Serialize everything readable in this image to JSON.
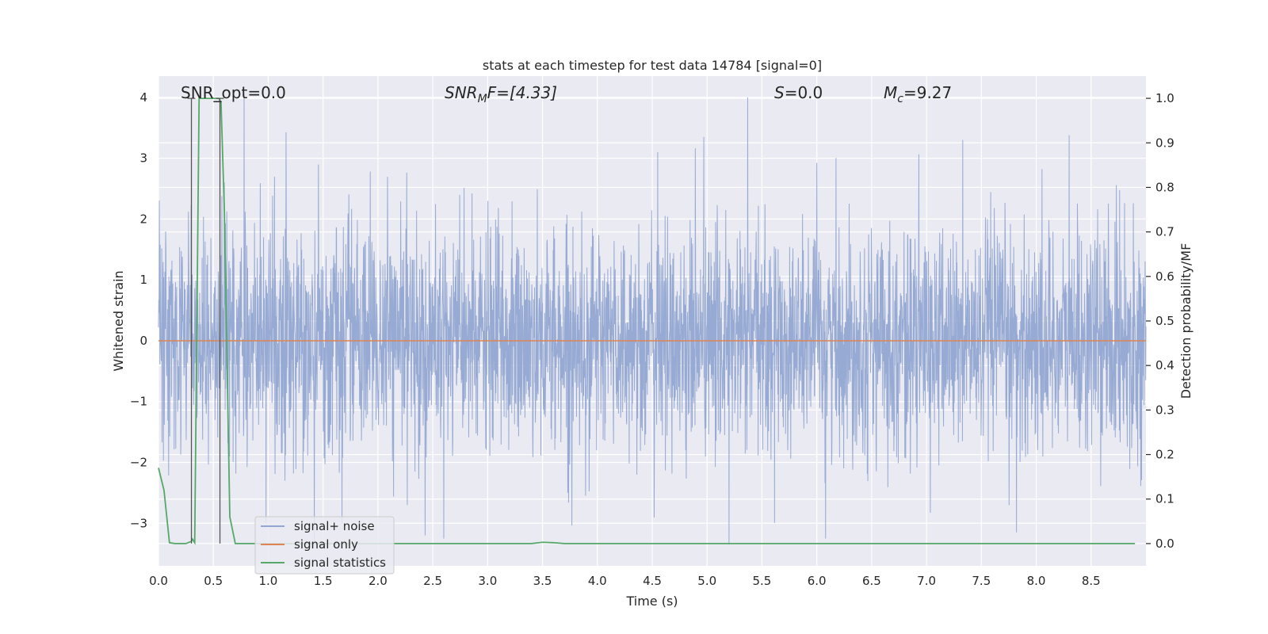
{
  "chart_data": {
    "type": "line",
    "title": "stats at each timestep for test data 14784 [signal=0]",
    "xlabel": "Time (s)",
    "ylabel": "Whitened strain",
    "y2label": "Detection probability/MF",
    "xlim": [
      0.0,
      9.0
    ],
    "ylim": [
      -3.7,
      4.35
    ],
    "y2lim": [
      -0.05,
      1.05
    ],
    "grid": true,
    "x_ticks": [
      0.0,
      0.5,
      1.0,
      1.5,
      2.0,
      2.5,
      3.0,
      3.5,
      4.0,
      4.5,
      5.0,
      5.5,
      6.0,
      6.5,
      7.0,
      7.5,
      8.0,
      8.5
    ],
    "x_tick_labels": [
      "0.0",
      "0.5",
      "1.0",
      "1.5",
      "2.0",
      "2.5",
      "3.0",
      "3.5",
      "4.0",
      "4.5",
      "5.0",
      "5.5",
      "6.0",
      "6.5",
      "7.0",
      "7.5",
      "8.0",
      "8.5"
    ],
    "y_ticks": [
      -3,
      -2,
      -1,
      0,
      1,
      2,
      3,
      4
    ],
    "y_tick_labels": [
      "−3",
      "−2",
      "−1",
      "0",
      "1",
      "2",
      "3",
      "4"
    ],
    "y2_ticks": [
      0.0,
      0.1,
      0.2,
      0.3,
      0.4,
      0.5,
      0.6,
      0.7,
      0.8,
      0.9,
      1.0
    ],
    "y2_tick_labels": [
      "0.0",
      "0.1",
      "0.2",
      "0.3",
      "0.4",
      "0.5",
      "0.6",
      "0.7",
      "0.8",
      "0.9",
      "1.0"
    ],
    "annotations": {
      "snr_opt": "SNR_opt=0.0",
      "snr_mf_main": "SNR",
      "snr_mf_sub": "M",
      "snr_mf_rest": "F=[4.33]",
      "s_main": "S",
      "s_rest": "=0.0",
      "mc_main": "M",
      "mc_sub": "c",
      "mc_rest": "=9.27"
    },
    "legend_position": "lower-left",
    "series": [
      {
        "name": "signal+ noise",
        "color": "#92a6d1",
        "noise_std": 0.9,
        "spikes": [
          {
            "x": 0.78,
            "y": 4.05
          },
          {
            "x": 5.37,
            "y": 4.0
          },
          {
            "x": 4.97,
            "y": 3.35
          },
          {
            "x": 8.3,
            "y": 3.38
          },
          {
            "x": 7.33,
            "y": 3.3
          },
          {
            "x": 4.55,
            "y": 3.1
          },
          {
            "x": 5.2,
            "y": -3.35
          },
          {
            "x": 1.42,
            "y": -3.3
          },
          {
            "x": 2.43,
            "y": -3.2
          },
          {
            "x": 2.6,
            "y": -3.25
          },
          {
            "x": 6.08,
            "y": -3.25
          },
          {
            "x": 7.82,
            "y": -3.15
          },
          {
            "x": 0.98,
            "y": -3.0
          },
          {
            "x": 1.93,
            "y": 2.78
          },
          {
            "x": 0.6,
            "y": 2.6
          }
        ]
      },
      {
        "name": "signal only",
        "color": "#dd8452",
        "constant": 0.0
      },
      {
        "name": "signal statistics",
        "color": "#55a868",
        "axis": "right",
        "x": [
          0.0,
          0.05,
          0.1,
          0.15,
          0.2,
          0.25,
          0.3,
          0.31,
          0.33,
          0.35,
          0.37,
          0.4,
          0.45,
          0.5,
          0.55,
          0.57,
          0.6,
          0.65,
          0.7,
          0.8,
          1.0,
          1.5,
          2.0,
          2.5,
          3.0,
          3.4,
          3.5,
          3.6,
          3.7,
          4.0,
          5.0,
          6.0,
          7.0,
          8.0,
          8.9
        ],
        "values": [
          0.17,
          0.12,
          0.002,
          0.0,
          0.0,
          0.0,
          0.005,
          0.01,
          0.002,
          0.5,
          1.0,
          1.0,
          1.0,
          1.0,
          1.0,
          0.99,
          0.75,
          0.06,
          0.0,
          0.0,
          0.0,
          0.0,
          0.0,
          0.0,
          0.0,
          0.0,
          0.003,
          0.002,
          0.0,
          0.0,
          0.0,
          0.0,
          0.0,
          0.0,
          0.0
        ]
      }
    ],
    "marker_lines": {
      "color": "#555555",
      "x": [
        0.3,
        0.56
      ]
    }
  }
}
